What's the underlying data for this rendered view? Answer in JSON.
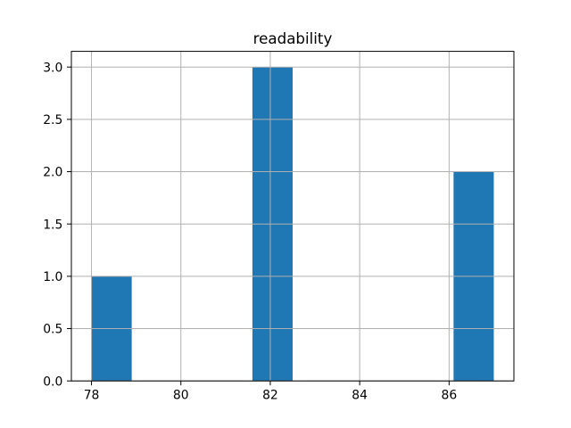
{
  "figure": {
    "background": "#ffffff"
  },
  "chart_data": {
    "type": "bar",
    "subtype": "histogram",
    "title": "readability",
    "xlabel": "",
    "ylabel": "",
    "bars": [
      {
        "x0": 78.0,
        "x1": 78.9,
        "count": 1
      },
      {
        "x0": 81.6,
        "x1": 82.5,
        "count": 3
      },
      {
        "x0": 86.1,
        "x1": 87.0,
        "count": 2
      }
    ],
    "xlim": [
      77.55,
      87.45
    ],
    "ylim": [
      0,
      3.15
    ],
    "xticks": {
      "values": [
        78,
        80,
        82,
        84,
        86
      ],
      "labels": [
        "78",
        "80",
        "82",
        "84",
        "86"
      ]
    },
    "yticks": {
      "values": [
        0,
        0.5,
        1,
        1.5,
        2,
        2.5,
        3
      ],
      "labels": [
        "0.0",
        "0.5",
        "1.0",
        "1.5",
        "2.0",
        "2.5",
        "3.0"
      ]
    },
    "grid": true,
    "grid_above_bars": true,
    "grid_color": "#b0b0b0",
    "bar_color": "#1f77b4",
    "spine_color": "#000000",
    "text_color": "#000000"
  }
}
